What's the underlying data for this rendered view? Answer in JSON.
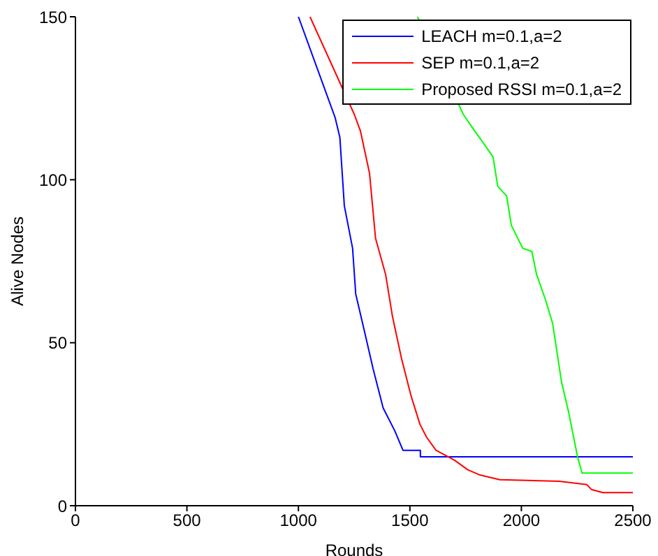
{
  "chart_data": {
    "type": "line",
    "xlabel": "Rounds",
    "ylabel": "Alive Nodes",
    "xlim": [
      0,
      2500
    ],
    "ylim": [
      0,
      150
    ],
    "xticks": [
      0,
      500,
      1000,
      1500,
      2000,
      2500
    ],
    "yticks": [
      0,
      50,
      100,
      150
    ],
    "grid": false,
    "legend": "top right",
    "marker": "none",
    "line_style": "solid",
    "series": [
      {
        "name": "LEACH m=0.1,a=2",
        "color": "#0000ff",
        "x": [
          1000,
          1165,
          1186,
          1206,
          1243,
          1257,
          1298,
          1335,
          1380,
          1432,
          1469,
          1547,
          1547,
          2500
        ],
        "values": [
          150,
          119,
          113,
          92,
          79,
          65,
          53,
          42,
          30,
          23,
          17,
          17,
          15,
          15
        ]
      },
      {
        "name": "SEP m=0.1,a=2",
        "color": "#ff0000",
        "x": [
          1052,
          1251,
          1278,
          1319,
          1346,
          1391,
          1422,
          1463,
          1504,
          1545,
          1575,
          1617,
          1699,
          1760,
          1811,
          1903,
          2170,
          2293,
          2314,
          2365,
          2500
        ],
        "values": [
          150,
          120,
          115,
          102,
          82,
          71,
          58,
          45,
          34,
          25,
          21,
          17,
          14,
          11,
          9.5,
          8,
          7.5,
          6.5,
          5,
          4,
          4
        ]
      },
      {
        "name": "Proposed RSSI m=0.1,a=2",
        "color": "#00ff00",
        "x": [
          1534,
          1740,
          1780,
          1822,
          1873,
          1894,
          1934,
          1955,
          2006,
          2047,
          2068,
          2109,
          2140,
          2180,
          2211,
          2252,
          2272,
          2500
        ],
        "values": [
          150,
          120,
          116,
          112,
          107,
          98,
          95,
          86,
          79,
          78,
          71,
          63,
          56,
          38,
          29,
          15,
          10,
          10
        ]
      }
    ]
  }
}
